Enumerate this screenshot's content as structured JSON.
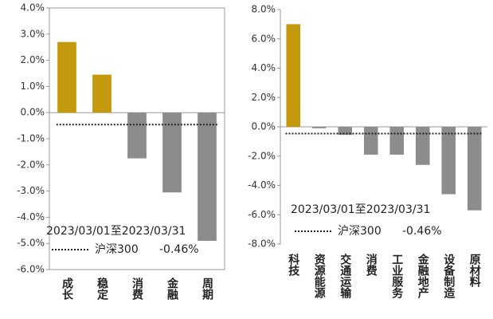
{
  "chart_data": [
    {
      "type": "bar",
      "categories": [
        "成长",
        "稳定",
        "消费",
        "金融",
        "周期"
      ],
      "values": [
        2.7,
        1.45,
        -1.75,
        -3.05,
        -4.9
      ],
      "colors": [
        "#c49a0c",
        "#c49a0c",
        "#8c8c8c",
        "#8c8c8c",
        "#8c8c8c"
      ],
      "ylim": [
        -6,
        4
      ],
      "yticks": [
        {
          "value": -6,
          "label": "-6.0%"
        },
        {
          "value": -5,
          "label": "-5.0%"
        },
        {
          "value": -4,
          "label": "-4.0%"
        },
        {
          "value": -3,
          "label": "-3.0%"
        },
        {
          "value": -2,
          "label": "-2.0%"
        },
        {
          "value": -1,
          "label": "-1.0%"
        },
        {
          "value": 0,
          "label": "0.0%"
        },
        {
          "value": 1,
          "label": "1.0%"
        },
        {
          "value": 2,
          "label": "2.0%"
        },
        {
          "value": 3,
          "label": "3.0%"
        },
        {
          "value": 4,
          "label": "4.0%"
        }
      ],
      "annotation": "2023/03/01至2023/03/31",
      "reference": {
        "name": "沪深300",
        "value": -0.46,
        "label": "-0.46%",
        "color": "#c49a0c"
      }
    },
    {
      "type": "bar",
      "categories": [
        "科技",
        "资源能源",
        "交通运输",
        "消费",
        "工业服务",
        "金融地产",
        "设备制造",
        "原材料"
      ],
      "values": [
        7.0,
        -0.1,
        -0.55,
        -1.9,
        -1.9,
        -2.6,
        -4.6,
        -5.7
      ],
      "colors": [
        "#c49a0c",
        "#8c8c8c",
        "#8c8c8c",
        "#8c8c8c",
        "#8c8c8c",
        "#8c8c8c",
        "#8c8c8c",
        "#8c8c8c"
      ],
      "ylim": [
        -8,
        8
      ],
      "yticks": [
        {
          "value": -8,
          "label": "-8.0%"
        },
        {
          "value": -6,
          "label": "-6.0%"
        },
        {
          "value": -4,
          "label": "-4.0%"
        },
        {
          "value": -2,
          "label": "-2.0%"
        },
        {
          "value": 0,
          "label": "0.0%"
        },
        {
          "value": 2,
          "label": "2.0%"
        },
        {
          "value": 4,
          "label": "4.0%"
        },
        {
          "value": 6,
          "label": "6.0%"
        },
        {
          "value": 8,
          "label": "8.0%"
        }
      ],
      "annotation": "2023/03/01至2023/03/31",
      "reference": {
        "name": "沪深300",
        "value": -0.46,
        "label": "-0.46%",
        "color": "#c49a0c"
      }
    }
  ]
}
